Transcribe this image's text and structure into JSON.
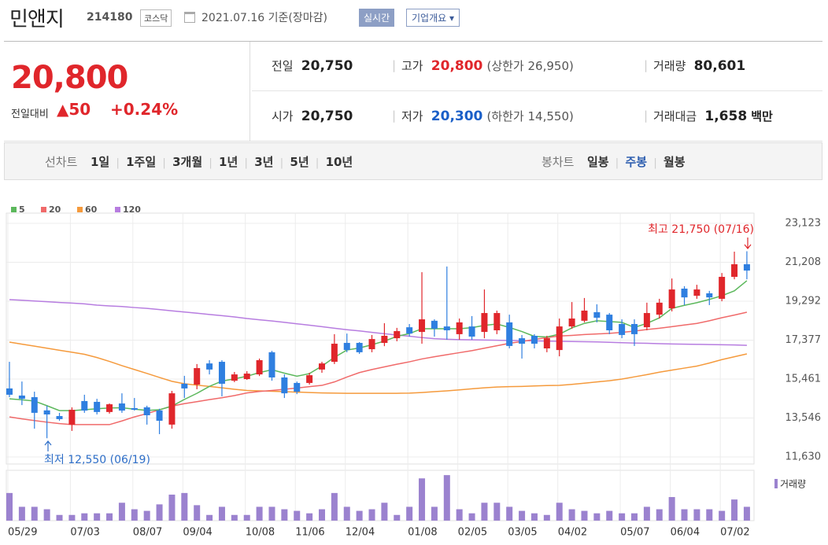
{
  "header": {
    "name": "민앤지",
    "code": "214180",
    "market": "코스닥",
    "date": "2021.07.16 기준(장마감)",
    "realtime": "실시간",
    "company_info": "기업개요"
  },
  "price": {
    "current": "20,800",
    "change_label": "전일대비",
    "change": "50",
    "change_pct": "+0.24%"
  },
  "stats": [
    {
      "label": "전일",
      "value": "20,750"
    },
    {
      "label": "고가",
      "value": "20,800",
      "note": "(상한가 26,950)"
    },
    {
      "label": "거래량",
      "value": "80,601"
    },
    {
      "label": "시가",
      "value": "20,750"
    },
    {
      "label": "저가",
      "value": "20,300",
      "note": "(하한가 14,550)"
    },
    {
      "label": "거래대금",
      "value": "1,658",
      "unit": "백만"
    }
  ],
  "tabs": {
    "line_label": "선차트",
    "line": [
      "1일",
      "1주일",
      "3개월",
      "1년",
      "3년",
      "5년",
      "10년"
    ],
    "candle_label": "봉차트",
    "candle": [
      "일봉",
      "주봉",
      "월봉"
    ]
  },
  "chart_data": {
    "type": "candlestick",
    "categories": [
      "05/29",
      null,
      null,
      null,
      null,
      "07/03",
      null,
      null,
      null,
      null,
      "08/07",
      null,
      null,
      null,
      "09/04",
      null,
      null,
      null,
      null,
      "10/08",
      null,
      null,
      null,
      "11/06",
      null,
      null,
      null,
      "12/04",
      null,
      null,
      null,
      null,
      "01/08",
      null,
      null,
      null,
      "02/05",
      null,
      null,
      null,
      "03/05",
      null,
      null,
      null,
      "04/02",
      null,
      null,
      null,
      null,
      "05/07",
      null,
      null,
      null,
      "06/04",
      null,
      null,
      null,
      "07/02",
      null,
      null
    ],
    "open": [
      15000,
      14650,
      14570,
      13920,
      13640,
      13220,
      14380,
      14340,
      13840,
      14260,
      14030,
      14070,
      13920,
      13220,
      15230,
      15190,
      16230,
      16310,
      15380,
      15460,
      15690,
      16780,
      15540,
      15270,
      15270,
      15930,
      16310,
      17240,
      17240,
      16930,
      17240,
      17470,
      18010,
      17780,
      18330,
      18050,
      17670,
      18050,
      17780,
      17860,
      18250,
      17470,
      17590,
      16970,
      16890,
      18050,
      18330,
      18750,
      18630,
      18170,
      18170,
      18010,
      18630,
      18940,
      19910,
      19560,
      19680,
      19410,
      20490,
      21110
    ],
    "high": [
      16310,
      15340,
      14840,
      14150,
      13800,
      14070,
      14690,
      14490,
      14260,
      14760,
      14530,
      14150,
      14000,
      14880,
      15620,
      16200,
      16390,
      16390,
      15810,
      15850,
      16470,
      16850,
      15690,
      15340,
      15770,
      16310,
      17670,
      17700,
      17280,
      17630,
      18210,
      17980,
      18170,
      20720,
      18400,
      21000,
      18440,
      18560,
      19870,
      18830,
      18630,
      17630,
      17670,
      17590,
      18440,
      19250,
      19450,
      19140,
      18710,
      18400,
      18400,
      19220,
      19410,
      20410,
      20030,
      20100,
      19800,
      20680,
      21730,
      21750
    ],
    "low": [
      14570,
      14180,
      13020,
      12550,
      13410,
      12910,
      13800,
      13720,
      13760,
      13800,
      13910,
      13220,
      12750,
      13020,
      14530,
      14960,
      15690,
      14610,
      15310,
      15420,
      15610,
      15380,
      14530,
      14720,
      15190,
      15770,
      16200,
      16780,
      16700,
      16780,
      17080,
      17320,
      17550,
      17200,
      17550,
      17400,
      17400,
      17400,
      17470,
      17670,
      16970,
      16470,
      16970,
      16780,
      16580,
      17940,
      18250,
      18250,
      17670,
      17470,
      17090,
      17860,
      18440,
      18790,
      19100,
      19410,
      19100,
      19290,
      20370,
      20370
    ],
    "close": [
      14690,
      14490,
      13800,
      13720,
      13490,
      13950,
      13910,
      13840,
      14220,
      13910,
      13950,
      13680,
      13410,
      14760,
      15000,
      16000,
      15930,
      15230,
      15690,
      15730,
      16390,
      15540,
      14760,
      14840,
      15650,
      16230,
      17200,
      16890,
      16780,
      17430,
      17590,
      17820,
      17700,
      18400,
      17940,
      17860,
      18250,
      17550,
      18710,
      18710,
      17090,
      17200,
      17200,
      17470,
      18050,
      18440,
      18830,
      18480,
      17860,
      17630,
      17670,
      18710,
      19220,
      19870,
      19480,
      19870,
      19480,
      20490,
      21110,
      20800
    ],
    "up_color": "#e0262b",
    "down_color": "#2f7fe0",
    "series": [
      {
        "name": "5",
        "color": "#5cb85c",
        "values": [
          14490,
          14440,
          14380,
          14150,
          13910,
          13910,
          13950,
          14000,
          14040,
          14050,
          13980,
          13920,
          13950,
          14130,
          14460,
          14760,
          15100,
          15360,
          15470,
          15600,
          15780,
          15920,
          15750,
          15600,
          15730,
          16100,
          16530,
          16890,
          16990,
          17150,
          17330,
          17560,
          17700,
          17940,
          17940,
          17940,
          17940,
          17990,
          18100,
          18170,
          18000,
          17800,
          17560,
          17530,
          17670,
          17980,
          18200,
          18330,
          18290,
          18250,
          18000,
          18200,
          18470,
          18940,
          19090,
          19220,
          19380,
          19560,
          19800,
          20300
        ]
      },
      {
        "name": "20",
        "color": "#f06a6a",
        "values": [
          13600,
          13500,
          13420,
          13340,
          13270,
          13220,
          13220,
          13220,
          13220,
          13400,
          13600,
          13760,
          13950,
          14130,
          14250,
          14350,
          14450,
          14540,
          14650,
          14780,
          14850,
          14900,
          14960,
          15020,
          15090,
          15150,
          15320,
          15560,
          15780,
          15930,
          16060,
          16190,
          16310,
          16450,
          16560,
          16660,
          16760,
          16860,
          16980,
          17100,
          17220,
          17310,
          17410,
          17500,
          17580,
          17610,
          17650,
          17680,
          17710,
          17760,
          17820,
          17900,
          17960,
          18040,
          18120,
          18200,
          18330,
          18480,
          18610,
          18750
        ]
      },
      {
        "name": "60",
        "color": "#f59a3c",
        "values": [
          17280,
          17180,
          17080,
          16980,
          16880,
          16780,
          16680,
          16520,
          16330,
          16120,
          15930,
          15740,
          15540,
          15350,
          15230,
          15160,
          15100,
          15030,
          14960,
          14900,
          14880,
          14860,
          14840,
          14820,
          14800,
          14780,
          14770,
          14760,
          14760,
          14760,
          14760,
          14760,
          14770,
          14800,
          14840,
          14880,
          14930,
          14980,
          15030,
          15070,
          15090,
          15100,
          15120,
          15140,
          15150,
          15200,
          15260,
          15320,
          15380,
          15460,
          15570,
          15680,
          15800,
          15900,
          16000,
          16100,
          16250,
          16420,
          16560,
          16700
        ]
      },
      {
        "name": "120",
        "color": "#b77de0",
        "values": [
          19370,
          19340,
          19300,
          19270,
          19230,
          19200,
          19160,
          19100,
          19060,
          19030,
          18980,
          18940,
          18880,
          18820,
          18760,
          18700,
          18640,
          18580,
          18520,
          18440,
          18380,
          18320,
          18250,
          18180,
          18110,
          18040,
          17960,
          17890,
          17830,
          17760,
          17690,
          17630,
          17570,
          17500,
          17450,
          17420,
          17400,
          17390,
          17380,
          17370,
          17360,
          17350,
          17340,
          17330,
          17320,
          17310,
          17300,
          17290,
          17270,
          17250,
          17230,
          17220,
          17200,
          17190,
          17180,
          17170,
          17160,
          17150,
          17140,
          17120
        ]
      }
    ],
    "ylim": [
      11630,
      23123
    ],
    "yticks": [
      {
        "value": 11630,
        "label": "11,630"
      },
      {
        "value": 13546,
        "label": "13,546"
      },
      {
        "value": 15461,
        "label": "15,461"
      },
      {
        "value": 17377,
        "label": "17,377"
      },
      {
        "value": 19292,
        "label": "19,292"
      },
      {
        "value": 21208,
        "label": "21,208"
      },
      {
        "value": 23123,
        "label": "23,123"
      }
    ],
    "grid": true,
    "volume": {
      "name": "거래량",
      "color": "#9b82cf",
      "ylim": [
        0,
        60
      ],
      "values": [
        34,
        17,
        17,
        14,
        7,
        7,
        9,
        9,
        9,
        22,
        14,
        12,
        20,
        32,
        34,
        19,
        7,
        17,
        7,
        7,
        17,
        17,
        14,
        12,
        9,
        14,
        34,
        17,
        12,
        14,
        22,
        7,
        17,
        52,
        17,
        56,
        14,
        9,
        22,
        22,
        17,
        12,
        9,
        7,
        22,
        14,
        12,
        9,
        12,
        9,
        9,
        17,
        14,
        29,
        14,
        14,
        14,
        12,
        26,
        17
      ]
    },
    "annotations": [
      {
        "text": "최고 21,750 (07/16)",
        "color": "#e0262b"
      },
      {
        "text": "최저 12,550 (06/19)",
        "color": "#2f6fc8"
      }
    ]
  }
}
